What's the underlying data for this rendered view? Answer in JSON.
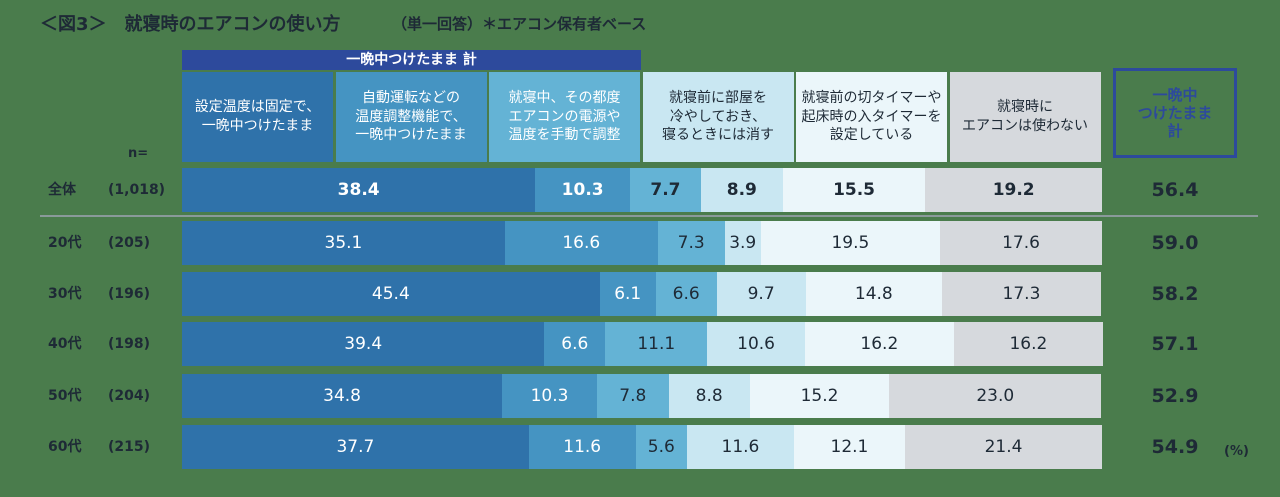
{
  "chart_data": {
    "type": "bar",
    "orientation": "horizontal",
    "stacked": true,
    "title": "＜図3＞　就寝時のエアコンの使い方",
    "subtitle": "（単一回答）＊エアコン保有者ベース",
    "group_header": "一晩中つけたまま 計",
    "n_label": "n=",
    "unit_label": "(%)",
    "xlim": [
      0,
      100
    ],
    "categories": [
      "全体",
      "20代",
      "30代",
      "40代",
      "50代",
      "60代"
    ],
    "n": [
      "(1,018)",
      "(205)",
      "(196)",
      "(198)",
      "(204)",
      "(215)"
    ],
    "series": [
      {
        "name": "設定温度は固定で、\n一晩中つけたまま",
        "color": "#2f72aa",
        "values": [
          38.4,
          35.1,
          45.4,
          39.4,
          34.8,
          37.7
        ]
      },
      {
        "name": "自動運転などの\n温度調整機能で、\n一晩中つけたまま",
        "color": "#4594c2",
        "values": [
          10.3,
          16.6,
          6.1,
          6.6,
          10.3,
          11.6
        ]
      },
      {
        "name": "就寝中、その都度\nエアコンの電源や\n温度を手動で調整",
        "color": "#64b3d5",
        "values": [
          7.7,
          7.3,
          6.6,
          11.1,
          7.8,
          5.6
        ]
      },
      {
        "name": "就寝前に部屋を\n冷やしておき、\n寝るときには消す",
        "color": "#c9e7f2",
        "values": [
          8.9,
          3.9,
          9.7,
          10.6,
          8.8,
          11.6
        ]
      },
      {
        "name": "就寝前の切タイマーや\n起床時の入タイマーを\n設定している",
        "color": "#ebf6fa",
        "values": [
          15.5,
          19.5,
          14.8,
          16.2,
          15.2,
          12.1
        ]
      },
      {
        "name": "就寝時に\nエアコンは使わない",
        "color": "#d6d9dd",
        "values": [
          19.2,
          17.6,
          17.3,
          16.2,
          23.0,
          21.4
        ],
        "value_labels": [
          "19.2",
          "17.6",
          "17.3",
          "16.2",
          "23.0",
          "21.4"
        ]
      }
    ],
    "totals": {
      "name": "一晩中\nつけたまま\n計",
      "values": [
        56.4,
        59.0,
        58.2,
        57.1,
        52.9,
        54.9
      ],
      "value_labels": [
        "56.4",
        "59.0",
        "58.2",
        "57.1",
        "52.9",
        "54.9"
      ]
    }
  }
}
